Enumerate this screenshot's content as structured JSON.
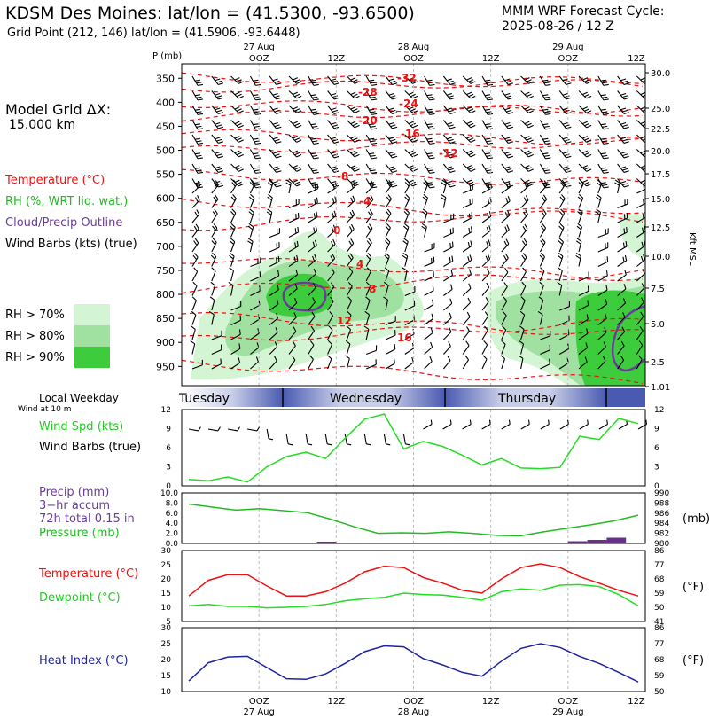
{
  "header": {
    "title": "KDSM Des Moines:  lat/lon = (41.5300, -93.6500)",
    "grid_point": "Grid Point (212, 146) lat/lon = (41.5906, -93.6448)",
    "model": "MMM WRF Forecast Cycle:",
    "cycle": "2025-08-26 / 12  Z"
  },
  "legend": {
    "grid_dx_label": "Model Grid ΔX:",
    "grid_dx_value": "15.000 km",
    "temperature": "Temperature (°C)",
    "rh": "RH (%, WRT liq. wat.)",
    "cloud": "Cloud/Precip Outline",
    "wind_barbs": "Wind Barbs (kts) (true)",
    "rh70": "RH > 70%",
    "rh80": "RH > 80%",
    "rh90": "RH > 90%",
    "rh70_color": "#d4f5d4",
    "rh80_color": "#a0e0a0",
    "rh90_color": "#3ccc3c",
    "temp_color": "#ee1111",
    "cloud_color": "#6a3d9a",
    "local_weekday": "Local Weekday",
    "wind_at_10m": "Wind at 10 m",
    "wind_spd": "Wind Spd (kts)",
    "wind_barbs2": "Wind Barbs (true)",
    "precip": "Precip (mm)",
    "accum": "3−hr accum",
    "total": "72h total 0.15 in",
    "pressure": "Pressure (mb)",
    "pressure_unit": "(mb)",
    "temp2": "Temperature (°C)",
    "dewpoint": "Dewpoint (°C)",
    "temp_unit_f": "(°F)",
    "heat_index": "Heat Index (°C)",
    "heat_unit_f": "(°F)"
  },
  "chart_data": [
    {
      "type": "heatmap",
      "name": "cross-section",
      "y_axis_title": "P (mb)",
      "right_axis_title": "Kft MSL",
      "pressure_ticks": [
        350,
        400,
        450,
        500,
        550,
        600,
        650,
        700,
        750,
        800,
        850,
        900,
        950
      ],
      "height_ticks": [
        "30.0",
        "25.0",
        "22.5",
        "20.0",
        "17.5",
        "15.0",
        "12.5",
        "10.0",
        "7.5",
        "5.0",
        "2.5",
        "1.01"
      ],
      "top_time_labels": [
        "27 Aug",
        "OOZ",
        "12Z",
        "28 Aug",
        "OOZ",
        "12Z",
        "29 Aug",
        "OOZ",
        "12Z"
      ],
      "temp_contour_labels": [
        "-32",
        "-28",
        "-24",
        "-20",
        "-16",
        "-12",
        "-8",
        "-4",
        "0",
        "4",
        "8",
        "12",
        "16"
      ]
    },
    {
      "type": "table",
      "name": "weekday-band",
      "days": [
        "Tuesday",
        "Wednesday",
        "Thursday"
      ]
    },
    {
      "type": "line",
      "name": "wind-speed",
      "ylim": [
        0,
        12
      ],
      "yticks": [
        0,
        3,
        6,
        9,
        12
      ],
      "series": [
        {
          "name": "Wind Spd (kts)",
          "color": "#22dd22",
          "values": [
            1.0,
            0.8,
            1.4,
            0.6,
            3.0,
            4.6,
            5.3,
            4.3,
            7.5,
            10.5,
            11.3,
            5.8,
            7.0,
            6.2,
            4.8,
            3.3,
            4.3,
            2.8,
            2.7,
            2.9,
            7.8,
            7.3,
            10.6,
            9.8
          ]
        }
      ]
    },
    {
      "type": "line",
      "name": "precip-pressure",
      "left_ticks": [
        "0.0",
        "2.0",
        "4.0",
        "6.0",
        "8.0",
        "10.0"
      ],
      "right_ticks": [
        980,
        982,
        984,
        986,
        988,
        990
      ],
      "precip_values": [
        0,
        0,
        0,
        0,
        0,
        0,
        0,
        0.02,
        0,
        0,
        0,
        0,
        0,
        0,
        0,
        0,
        0,
        0,
        0,
        0,
        0.025,
        0.04,
        0.065,
        0
      ],
      "series": [
        {
          "name": "Pressure (mb)",
          "color": "#22bb22",
          "values": [
            987.8,
            987.2,
            986.6,
            986.9,
            986.5,
            986.1,
            984.8,
            983.3,
            982.0,
            982.1,
            982.0,
            982.3,
            982.0,
            981.6,
            981.5,
            982.3,
            983.0,
            983.7,
            984.5,
            985.6
          ]
        }
      ]
    },
    {
      "type": "line",
      "name": "temperature-dewpoint",
      "ylim": [
        5,
        30
      ],
      "left_ticks": [
        5,
        10,
        15,
        20,
        25,
        30
      ],
      "right_ticks": [
        41,
        50,
        59,
        68,
        77,
        86
      ],
      "series": [
        {
          "name": "Temperature (°C)",
          "color": "#ee1111",
          "values": [
            14.0,
            19.5,
            21.5,
            21.5,
            17.5,
            14.0,
            14.0,
            15.5,
            18.5,
            22.5,
            24.5,
            24.0,
            20.5,
            18.5,
            16.0,
            15.0,
            20.0,
            24.0,
            25.3,
            24.0,
            20.8,
            18.5,
            16.0,
            14.0
          ]
        },
        {
          "name": "Dewpoint (°C)",
          "color": "#22dd22",
          "values": [
            10.5,
            11.0,
            10.3,
            10.3,
            9.8,
            10.0,
            10.3,
            11.0,
            12.3,
            13.0,
            13.5,
            15.0,
            14.5,
            14.3,
            13.5,
            12.5,
            15.5,
            16.5,
            16.0,
            17.8,
            18.0,
            17.3,
            14.5,
            10.5
          ]
        }
      ]
    },
    {
      "type": "line",
      "name": "heat-index",
      "ylim": [
        10,
        30
      ],
      "left_ticks": [
        10,
        15,
        20,
        25,
        30
      ],
      "right_ticks": [
        50,
        59,
        68,
        77,
        86
      ],
      "bottom_time_labels": [
        "OOZ",
        "27 Aug",
        "12Z",
        "OOZ",
        "28 Aug",
        "12Z",
        "OOZ",
        "29 Aug",
        "12Z"
      ],
      "series": [
        {
          "name": "Heat Index (°C)",
          "color": "#1e24a0",
          "values": [
            13.3,
            19.0,
            20.8,
            21.0,
            17.5,
            14.0,
            13.8,
            15.5,
            18.8,
            22.5,
            24.3,
            24.0,
            20.3,
            18.3,
            16.0,
            14.8,
            19.5,
            23.5,
            25.0,
            23.8,
            21.0,
            18.8,
            16.0,
            13.0
          ]
        }
      ]
    }
  ]
}
